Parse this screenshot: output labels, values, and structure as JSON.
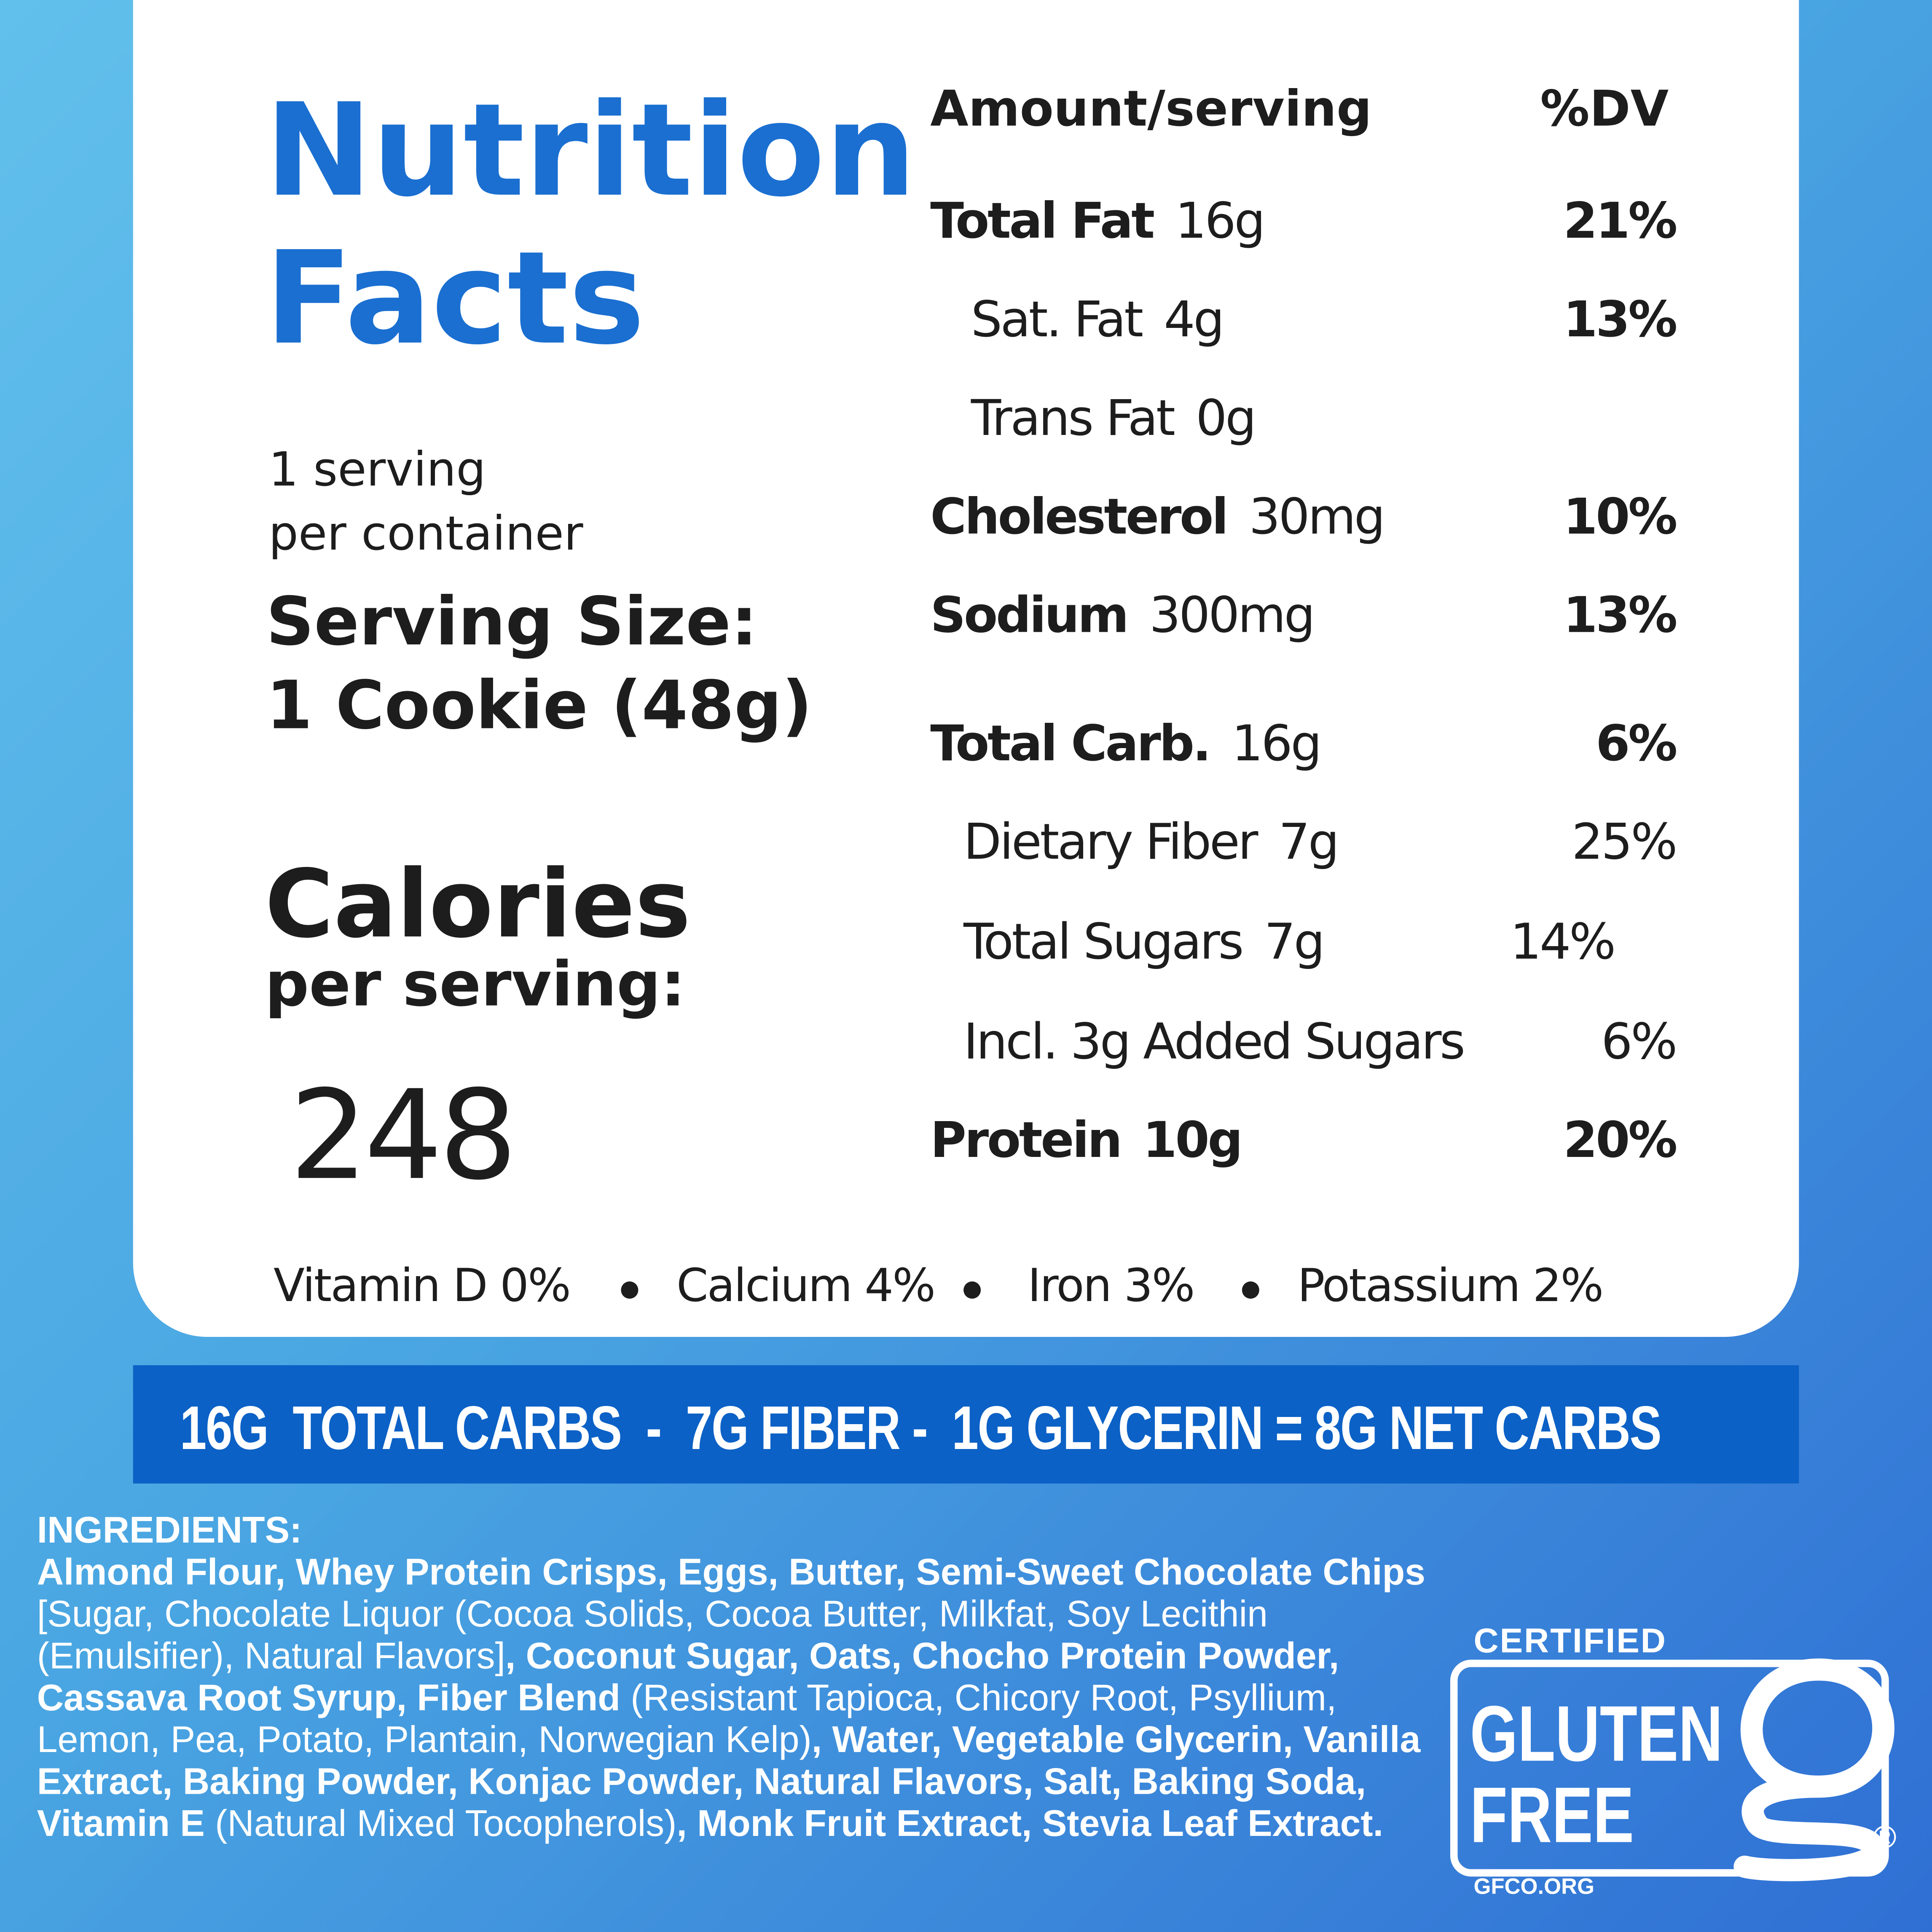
{
  "title_lines": [
    "Nutrition",
    "Facts"
  ],
  "servings": [
    "1 serving",
    "per container"
  ],
  "serving_size_label": "Serving Size:",
  "serving_size": "1 Cookie (48g)",
  "calories_label": "Calories",
  "calories_sub": "per serving:",
  "calories": "248",
  "header": {
    "amount": "Amount/serving",
    "dv": "%DV"
  },
  "nutrients": [
    {
      "name": "Total Fat",
      "amount": "16g",
      "dv": "21%"
    },
    {
      "name": "Sat. Fat",
      "amount": "4g",
      "dv": "13%"
    },
    {
      "name": "Trans Fat",
      "amount": "0g"
    },
    {
      "name": "Cholesterol",
      "amount": "30mg",
      "dv": "10%"
    },
    {
      "name": "Sodium",
      "amount": "300mg",
      "dv": "13%"
    },
    {
      "name": "Total Carb.",
      "amount": "16g",
      "dv": "6%"
    },
    {
      "name": "Dietary Fiber",
      "amount": "7g",
      "dv": "25%"
    },
    {
      "name": "Total Sugars",
      "amount": "7g",
      "dv": "14%"
    },
    {
      "name": "Incl. 3g Added Sugars",
      "dv": "6%"
    },
    {
      "name": "Protein",
      "amount": "10g",
      "dv": "20%"
    }
  ],
  "vitamins": [
    "Vitamin D 0%",
    "Calcium 4%",
    "Iron 3%",
    "Potassium 2%"
  ],
  "net_carbs_banner": "16G  TOTAL CARBS  -  7G FIBER -  1G GLYCERIN = 8G NET CARBS",
  "ingredients": {
    "heading": "INGREDIENTS:",
    "segments": [
      {
        "text": "Almond Flour, Whey Protein Crisps, Eggs, Butter, Semi-Sweet Chocolate Chips",
        "bold": true
      },
      {
        "text": " [Sugar, Chocolate Liquor (Cocoa Solids, Cocoa Butter, Milkfat, Soy Lecithin (Emulsifier), Natural Flavors]",
        "bold": false
      },
      {
        "text": ", Coconut Sugar, Oats, Chocho Protein Powder, Cassava Root Syrup, Fiber Blend",
        "bold": true
      },
      {
        "text": " (Resistant Tapioca, Chicory Root, Psyllium, Lemon, Pea, Potato, Plantain, Norwegian Kelp)",
        "bold": false
      },
      {
        "text": ", Water, Vegetable Glycerin, Vanilla Extract, Baking Powder, Konjac Powder, Natural Flavors, Salt, Baking Soda, Vitamin E",
        "bold": true
      },
      {
        "text": " (Natural Mixed Tocopherols)",
        "bold": false
      },
      {
        "text": ", Monk Fruit Extract, Stevia Leaf Extract.",
        "bold": true
      }
    ]
  },
  "badge": {
    "top": "CERTIFIED",
    "line1": "GLUTEN",
    "line2": "FREE",
    "mark": "®",
    "url": "GFCO.ORG"
  }
}
